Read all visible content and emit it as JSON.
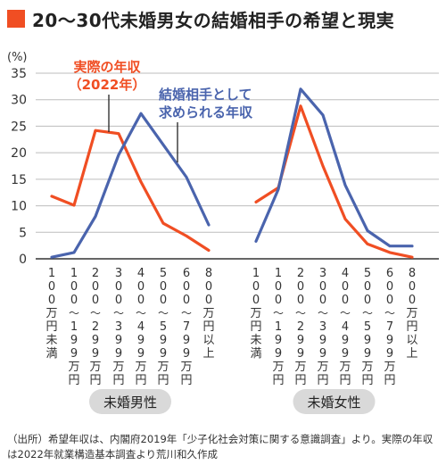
{
  "header": {
    "title": "20～30代未婚男女の結婚相手の希望と現実",
    "accent_color": "#f04e23"
  },
  "chart_data": {
    "type": "line",
    "title": "20～30代未婚男女の結婚相手の希望と現実",
    "ylabel": "(%)",
    "ylim": [
      0,
      35
    ],
    "yticks": [
      0,
      5,
      10,
      15,
      20,
      25,
      30,
      35
    ],
    "grid": true,
    "categories": [
      "100万円未満",
      "100〜199万円",
      "200〜299万円",
      "300〜399万円",
      "400〜499万円",
      "500〜599万円",
      "600〜799万円",
      "800万円以上"
    ],
    "panels": [
      {
        "label": "未婚男性",
        "series": [
          {
            "name": "実際の年収（2022年）",
            "color": "#f04e23",
            "values": [
              11.8,
              10.1,
              24.2,
              23.6,
              14.5,
              6.7,
              4.3,
              1.6
            ]
          },
          {
            "name": "結婚相手として求められる年収",
            "color": "#4a64ad",
            "values": [
              0.3,
              1.2,
              8.0,
              19.6,
              27.4,
              21.5,
              15.4,
              6.4
            ]
          }
        ]
      },
      {
        "label": "未婚女性",
        "series": [
          {
            "name": "実際の年収（2022年）",
            "color": "#f04e23",
            "values": [
              10.7,
              13.4,
              28.8,
              17.5,
              7.5,
              2.8,
              1.2,
              0.3
            ]
          },
          {
            "name": "結婚相手として求められる年収",
            "color": "#4a64ad",
            "values": [
              3.3,
              13.1,
              32.0,
              27.1,
              13.9,
              5.3,
              2.4,
              2.4
            ]
          }
        ]
      }
    ],
    "annotations": {
      "actual_line1": "実際の年収",
      "actual_line2": "（2022年）",
      "desired_line1": "結婚相手として",
      "desired_line2": "求められる年収"
    }
  },
  "footnote": {
    "line1": "（出所）希望年収は、内閣府2019年「少子化社会対策に関する意識調査」より。実際の年収",
    "line2": "は2022年就業構造基本調査より荒川和久作成"
  }
}
